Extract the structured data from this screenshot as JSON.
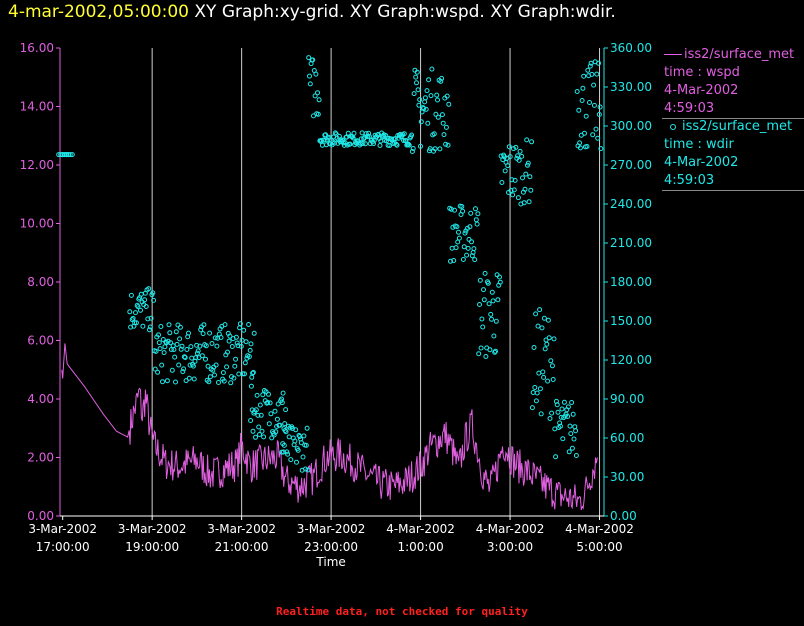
{
  "header": {
    "timestamp": "4-mar-2002,05:00:00",
    "graphs": "XY Graph:xy-grid.  XY Graph:wspd.  XY Graph:wdir."
  },
  "footer": {
    "note": "Realtime data, not checked for quality"
  },
  "colors": {
    "wspd": "#e060e0",
    "wdir": "#20e8e8",
    "grid": "#d0d0d0",
    "axis_text": "#ffffff",
    "timestamp": "#ffff33",
    "footer": "#ff2020"
  },
  "legend": [
    {
      "line1": "iss2/surface_met",
      "line2": "time : wspd",
      "line3": "4-Mar-2002",
      "line4": "4:59:03",
      "marker": "line",
      "color": "#e060e0"
    },
    {
      "line1": "iss2/surface_met",
      "line2": "time : wdir",
      "line3": "4-Mar-2002",
      "line4": "4:59:03",
      "marker": "circle",
      "color": "#20e8e8"
    }
  ],
  "chart_data": {
    "type": "line",
    "xlabel": "Time",
    "x_range": [
      16.94,
      29.1
    ],
    "x_ticks": [
      {
        "v": 17,
        "label": [
          "3-Mar-2002",
          "17:00:00"
        ]
      },
      {
        "v": 19,
        "label": [
          "3-Mar-2002",
          "19:00:00"
        ]
      },
      {
        "v": 21,
        "label": [
          "3-Mar-2002",
          "21:00:00"
        ]
      },
      {
        "v": 23,
        "label": [
          "3-Mar-2002",
          "23:00:00"
        ]
      },
      {
        "v": 25,
        "label": [
          "4-Mar-2002",
          "1:00:00"
        ]
      },
      {
        "v": 27,
        "label": [
          "4-Mar-2002",
          "3:00:00"
        ]
      },
      {
        "v": 29,
        "label": [
          "4-Mar-2002",
          "5:00:00"
        ]
      }
    ],
    "grid_x": [
      19,
      21,
      23,
      25,
      27,
      29
    ],
    "y_left": {
      "range": [
        0,
        16
      ],
      "ticks": [
        "0.00",
        "2.00",
        "4.00",
        "6.00",
        "8.00",
        "10.00",
        "12.00",
        "14.00",
        "16.00"
      ]
    },
    "y_right": {
      "range": [
        0,
        360
      ],
      "ticks": [
        "0.00",
        "30.00",
        "60.00",
        "90.00",
        "120.00",
        "150.00",
        "180.00",
        "210.00",
        "240.00",
        "270.00",
        "300.00",
        "330.00",
        "360.00"
      ]
    },
    "series": [
      {
        "name": "iss2/surface_met time : wspd",
        "axis": "left",
        "style": "line",
        "points": [
          [
            16.98,
            5.0
          ],
          [
            17.0,
            4.7
          ],
          [
            17.05,
            5.9
          ],
          [
            17.1,
            5.2
          ],
          [
            17.2,
            5.0
          ],
          [
            17.5,
            4.4
          ],
          [
            17.9,
            3.5
          ],
          [
            18.2,
            2.9
          ],
          [
            18.45,
            2.7
          ],
          [
            18.6,
            3.6
          ],
          [
            18.72,
            4.2
          ],
          [
            18.78,
            3.4
          ],
          [
            18.85,
            4.1
          ],
          [
            18.95,
            3.0
          ],
          [
            19.05,
            2.4
          ],
          [
            19.3,
            1.8
          ],
          [
            19.6,
            1.7
          ],
          [
            20.0,
            1.9
          ],
          [
            20.3,
            1.4
          ],
          [
            20.6,
            1.6
          ],
          [
            20.9,
            1.8
          ],
          [
            21.0,
            2.4
          ],
          [
            21.2,
            1.7
          ],
          [
            21.5,
            1.9
          ],
          [
            21.8,
            2.0
          ],
          [
            22.0,
            1.2
          ],
          [
            22.3,
            1.0
          ],
          [
            22.6,
            1.3
          ],
          [
            22.75,
            1.7
          ],
          [
            22.9,
            2.0
          ],
          [
            23.2,
            2.1
          ],
          [
            23.5,
            1.8
          ],
          [
            23.8,
            1.4
          ],
          [
            24.1,
            1.1
          ],
          [
            24.4,
            1.0
          ],
          [
            24.7,
            1.2
          ],
          [
            25.0,
            1.7
          ],
          [
            25.2,
            2.3
          ],
          [
            25.4,
            2.6
          ],
          [
            25.55,
            2.8
          ],
          [
            25.7,
            2.3
          ],
          [
            25.85,
            1.6
          ],
          [
            26.0,
            2.6
          ],
          [
            26.15,
            3.1
          ],
          [
            26.25,
            2.4
          ],
          [
            26.4,
            1.4
          ],
          [
            26.55,
            0.9
          ],
          [
            26.7,
            1.6
          ],
          [
            26.85,
            2.5
          ],
          [
            27.1,
            1.8
          ],
          [
            27.4,
            1.5
          ],
          [
            27.8,
            1.0
          ],
          [
            28.1,
            0.7
          ],
          [
            28.35,
            0.6
          ],
          [
            28.55,
            0.5
          ],
          [
            28.7,
            0.9
          ],
          [
            28.85,
            1.6
          ],
          [
            28.95,
            2.0
          ]
        ]
      },
      {
        "name": "iss2/surface_met time : wdir",
        "axis": "right",
        "style": "markers",
        "clusters": [
          {
            "x": [
              16.98,
              17.08
            ],
            "y_pts": [
              [
                17.0,
                278
              ],
              [
                17.08,
                278
              ]
            ]
          },
          {
            "from": 18.5,
            "to": 19.05,
            "y": [
              142,
              175
            ]
          },
          {
            "from": 19.05,
            "to": 21.3,
            "y": [
              102,
              148
            ]
          },
          {
            "from": 21.2,
            "to": 22.0,
            "y": [
              60,
              100
            ]
          },
          {
            "from": 21.9,
            "to": 22.5,
            "y": [
              35,
              70
            ]
          },
          {
            "from": 22.5,
            "to": 22.75,
            "y": [
              305,
              355
            ]
          },
          {
            "from": 22.75,
            "to": 24.8,
            "y": [
              285,
              295
            ]
          },
          {
            "from": 24.8,
            "to": 25.65,
            "y": [
              280,
              345
            ]
          },
          {
            "from": 25.65,
            "to": 26.3,
            "y": [
              195,
              240
            ]
          },
          {
            "from": 26.3,
            "to": 26.8,
            "y": [
              120,
              190
            ]
          },
          {
            "from": 26.8,
            "to": 27.5,
            "y": [
              240,
              290
            ]
          },
          {
            "from": 27.5,
            "to": 28.0,
            "y": [
              75,
              160
            ]
          },
          {
            "from": 28.0,
            "to": 28.5,
            "y": [
              45,
              90
            ]
          },
          {
            "from": 28.5,
            "to": 29.05,
            "y": [
              280,
              350
            ]
          }
        ]
      }
    ]
  }
}
